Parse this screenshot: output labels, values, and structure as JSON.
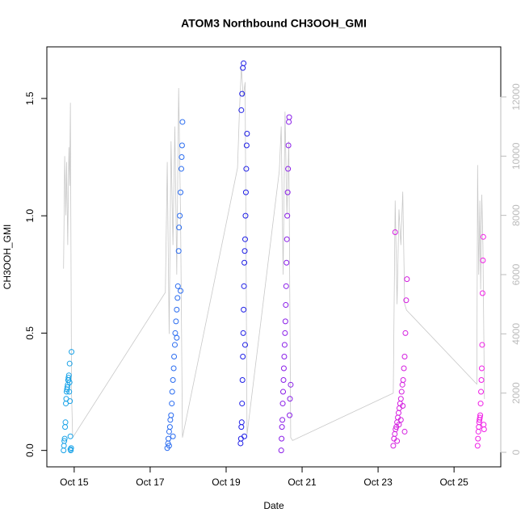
{
  "chart_data": {
    "type": "scatter",
    "title": "ATOM3 Northbound CH3OOH_GMI",
    "x_label": "Date",
    "y_label": "CH3OOH_GMI",
    "xlim": [
      14.28,
      26.23
    ],
    "xticks": [
      {
        "value": 15,
        "label": "Oct 15"
      },
      {
        "value": 17,
        "label": "Oct 17"
      },
      {
        "value": 19,
        "label": "Oct 19"
      },
      {
        "value": 21,
        "label": "Oct 21"
      },
      {
        "value": 23,
        "label": "Oct 23"
      },
      {
        "value": 25,
        "label": "Oct 25"
      }
    ],
    "ylim": [
      -0.07,
      1.72
    ],
    "yticks": [
      {
        "value": 0,
        "label": "0.0"
      },
      0.5,
      {
        "value": 1,
        "label": "1.0"
      },
      1.5
    ],
    "y2lim": [
      -490,
      13690
    ],
    "y2ticks": [
      0,
      2000,
      4000,
      6000,
      8000,
      10000,
      12000
    ],
    "series": [
      {
        "color": "#1aa3e8",
        "x": [
          14.72,
          14.73,
          14.74,
          14.75,
          14.76,
          14.77,
          14.78,
          14.79,
          14.8,
          14.81,
          14.82,
          14.83,
          14.84,
          14.85,
          14.86,
          14.87,
          14.88,
          14.89,
          14.9,
          14.91,
          14.92,
          14.93,
          14.88,
          14.85,
          14.9
        ],
        "values": [
          0.0,
          0.02,
          0.04,
          0.05,
          0.1,
          0.12,
          0.2,
          0.22,
          0.25,
          0.26,
          0.27,
          0.28,
          0.3,
          0.31,
          0.32,
          0.25,
          0.29,
          0.21,
          0.06,
          0.0,
          0.01,
          0.42,
          0.37,
          0.3,
          0.005
        ]
      },
      {
        "color": "#2a6cf0",
        "x": [
          17.45,
          17.47,
          17.48,
          17.5,
          17.52,
          17.53,
          17.55,
          17.57,
          17.58,
          17.6,
          17.62,
          17.63,
          17.65,
          17.66,
          17.68,
          17.7,
          17.72,
          17.73,
          17.75,
          17.76,
          17.78,
          17.8,
          17.82,
          17.83,
          17.84,
          17.85,
          17.5,
          17.6,
          17.7,
          17.8
        ],
        "values": [
          0.01,
          0.03,
          0.05,
          0.08,
          0.1,
          0.13,
          0.15,
          0.2,
          0.25,
          0.3,
          0.35,
          0.4,
          0.45,
          0.5,
          0.55,
          0.6,
          0.65,
          0.7,
          0.85,
          0.95,
          1.0,
          1.1,
          1.2,
          1.25,
          1.3,
          1.4,
          0.02,
          0.06,
          0.48,
          0.68
        ]
      },
      {
        "color": "#1e1ee6",
        "x": [
          19.38,
          19.39,
          19.4,
          19.41,
          19.42,
          19.43,
          19.44,
          19.45,
          19.46,
          19.47,
          19.48,
          19.49,
          19.5,
          19.51,
          19.52,
          19.53,
          19.54,
          19.55,
          19.4,
          19.42,
          19.44,
          19.46,
          19.48,
          19.5
        ],
        "values": [
          0.03,
          0.05,
          0.1,
          0.12,
          0.2,
          0.3,
          0.4,
          0.5,
          0.6,
          0.7,
          0.8,
          0.85,
          0.9,
          1.0,
          1.1,
          1.2,
          1.3,
          1.35,
          1.45,
          1.52,
          1.63,
          1.65,
          0.06,
          0.45
        ]
      },
      {
        "color": "#8a1ee8",
        "x": [
          20.45,
          20.46,
          20.47,
          20.48,
          20.49,
          20.5,
          20.51,
          20.52,
          20.53,
          20.54,
          20.55,
          20.56,
          20.57,
          20.58,
          20.59,
          20.6,
          20.61,
          20.62,
          20.63,
          20.64,
          20.65,
          20.66,
          20.67,
          20.68,
          20.7
        ],
        "values": [
          0.0,
          0.05,
          0.1,
          0.13,
          0.2,
          0.25,
          0.3,
          0.35,
          0.4,
          0.45,
          0.5,
          0.55,
          0.62,
          0.7,
          0.8,
          0.9,
          1.0,
          1.1,
          1.2,
          1.3,
          1.4,
          1.42,
          0.15,
          0.22,
          0.28
        ]
      },
      {
        "color": "#d41ee0",
        "x": [
          23.4,
          23.42,
          23.44,
          23.46,
          23.48,
          23.5,
          23.52,
          23.54,
          23.56,
          23.58,
          23.6,
          23.62,
          23.64,
          23.66,
          23.68,
          23.7,
          23.72,
          23.74,
          23.76,
          23.45,
          23.5,
          23.55,
          23.6,
          23.65,
          23.7
        ],
        "values": [
          0.02,
          0.05,
          0.07,
          0.09,
          0.1,
          0.12,
          0.14,
          0.16,
          0.18,
          0.2,
          0.22,
          0.25,
          0.28,
          0.3,
          0.35,
          0.4,
          0.5,
          0.64,
          0.73,
          0.93,
          0.04,
          0.11,
          0.13,
          0.19,
          0.08
        ]
      },
      {
        "color": "#f01ee6",
        "x": [
          25.62,
          25.63,
          25.64,
          25.65,
          25.66,
          25.67,
          25.68,
          25.69,
          25.7,
          25.71,
          25.72,
          25.73,
          25.74,
          25.75,
          25.76,
          25.77,
          25.78,
          25.79
        ],
        "values": [
          0.02,
          0.05,
          0.08,
          0.1,
          0.12,
          0.13,
          0.14,
          0.15,
          0.2,
          0.25,
          0.3,
          0.35,
          0.45,
          0.67,
          0.81,
          0.91,
          0.11,
          0.09
        ]
      },
      {
        "axis": "y2",
        "color": "#c8c8c8",
        "x": [
          14.72,
          14.75,
          14.78,
          14.8,
          14.83,
          14.86,
          14.88,
          14.9,
          14.93,
          14.96,
          17.4,
          17.45,
          17.5,
          17.55,
          17.6,
          17.65,
          17.7,
          17.75,
          17.8,
          17.85,
          19.3,
          19.35,
          19.4,
          19.45,
          19.5,
          19.55,
          20.4,
          20.45,
          20.5,
          20.55,
          20.6,
          20.65,
          20.7,
          20.75,
          23.4,
          23.45,
          23.5,
          23.55,
          23.6,
          23.65,
          23.7,
          23.75,
          25.6,
          25.62,
          25.65,
          25.68,
          25.7,
          25.73,
          25.76,
          25.8
        ],
        "values": [
          6200,
          10000,
          8000,
          9800,
          7000,
          10300,
          9000,
          11800,
          2000,
          500,
          5400,
          9800,
          4000,
          10500,
          7000,
          11000,
          6000,
          12300,
          8000,
          500,
          9600,
          11500,
          13000,
          12000,
          12500,
          600,
          9500,
          11000,
          6000,
          11500,
          8000,
          10500,
          500,
          400,
          2000,
          8500,
          5000,
          8200,
          7000,
          8800,
          5000,
          4800,
          2300,
          9700,
          6000,
          8500,
          5500,
          8700,
          7000,
          1800
        ]
      }
    ]
  }
}
